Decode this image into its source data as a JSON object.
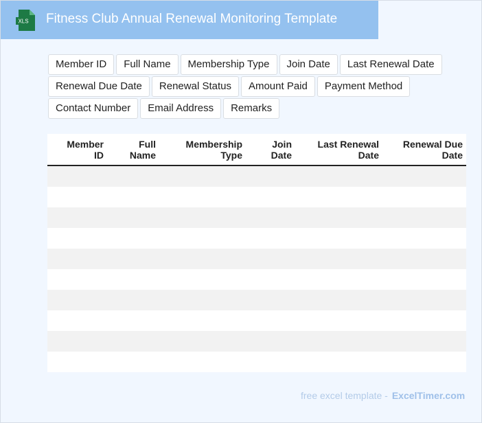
{
  "header": {
    "icon_label": "XLS",
    "title": "Fitness Club Annual Renewal Monitoring Template"
  },
  "tags": [
    "Member ID",
    "Full Name",
    "Membership Type",
    "Join Date",
    "Last Renewal Date",
    "Renewal Due Date",
    "Renewal Status",
    "Amount Paid",
    "Payment Method",
    "Contact Number",
    "Email Address",
    "Remarks"
  ],
  "table": {
    "headers": [
      "Member\nID",
      "Full\nName",
      "Membership\nType",
      "Join\nDate",
      "Last Renewal\nDate",
      "Renewal Due\nDate"
    ]
  },
  "footer": {
    "text": "free excel template -",
    "brand": "ExcelTimer.com"
  }
}
